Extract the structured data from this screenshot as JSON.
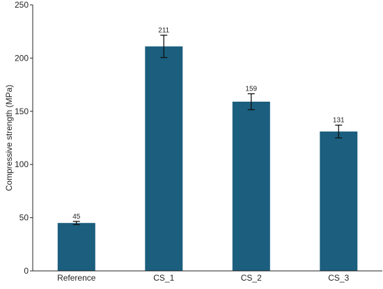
{
  "chart_data": {
    "type": "bar",
    "title": "",
    "xlabel": "",
    "ylabel": "Compressive strength (MPa)",
    "categories": [
      "Reference",
      "CS_1",
      "CS_2",
      "CS_3"
    ],
    "values": [
      45,
      211,
      159,
      131
    ],
    "error": [
      1.5,
      10.5,
      7.5,
      6
    ],
    "data_labels": [
      "45",
      "211",
      "159",
      "131"
    ],
    "ylim": [
      0,
      250
    ],
    "yticks": [
      0,
      50,
      100,
      150,
      200,
      250
    ],
    "ytick_labels": [
      "0",
      "50",
      "100",
      "150",
      "200",
      "250"
    ],
    "grid": false,
    "legend": "none",
    "bar_color": "#1b5e7e",
    "error_bar_color": "#111111"
  }
}
